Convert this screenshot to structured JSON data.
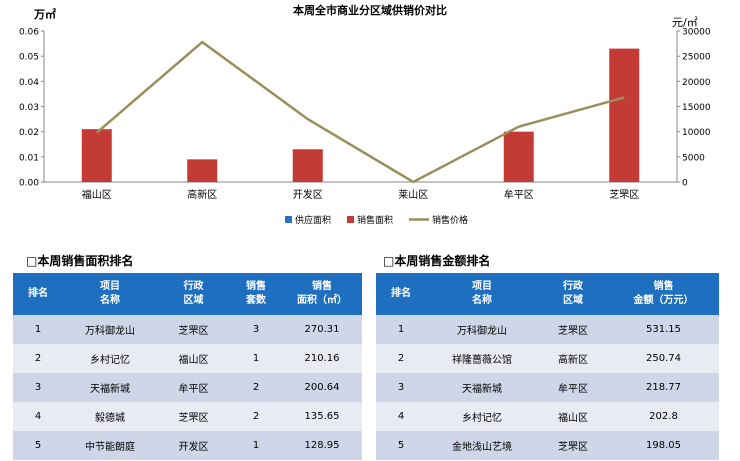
{
  "chart_data": {
    "type": "bar+line",
    "title": "本周全市商业分区域供销价对比",
    "categories": [
      "福山区",
      "高新区",
      "开发区",
      "莱山区",
      "牟平区",
      "芝罘区"
    ],
    "y_left_unit": "万㎡",
    "y_right_unit": "元/㎡",
    "y_left_ticks": [
      "0.00",
      "0.01",
      "0.02",
      "0.03",
      "0.04",
      "0.05",
      "0.06"
    ],
    "y_left_range": [
      0,
      0.06
    ],
    "y_right_ticks": [
      "0",
      "5000",
      "10000",
      "15000",
      "20000",
      "25000",
      "30000"
    ],
    "y_right_range": [
      0,
      30000
    ],
    "series": [
      {
        "name": "供应面积",
        "kind": "bar",
        "axis": "left",
        "color": "#2e6fc4",
        "values": [
          0,
          0,
          0,
          0,
          0,
          0
        ]
      },
      {
        "name": "销售面积",
        "kind": "bar",
        "axis": "left",
        "color": "#c43a35",
        "values": [
          0.021,
          0.009,
          0.013,
          0,
          0.02,
          0.053
        ]
      },
      {
        "name": "销售价格",
        "kind": "line",
        "axis": "right",
        "color": "#9a8f5a",
        "values": [
          9800,
          27800,
          12500,
          0,
          11000,
          16800
        ]
      }
    ],
    "legend_position": "bottom",
    "grid": false
  },
  "area_table": {
    "title": "本周销售面积排名",
    "headers": [
      "排名",
      "项目\n名称",
      "行政\n区域",
      "销售\n套数",
      "销售\n面积（㎡）"
    ],
    "rows": [
      [
        "1",
        "万科御龙山",
        "芝罘区",
        "3",
        "270.31"
      ],
      [
        "2",
        "乡村记忆",
        "福山区",
        "1",
        "210.16"
      ],
      [
        "3",
        "天福新城",
        "牟平区",
        "2",
        "200.64"
      ],
      [
        "4",
        "毅德城",
        "芝罘区",
        "2",
        "135.65"
      ],
      [
        "5",
        "中节能朗庭",
        "开发区",
        "1",
        "128.95"
      ]
    ]
  },
  "amount_table": {
    "title": "本周销售金额排名",
    "headers": [
      "排名",
      "项目\n名称",
      "行政\n区域",
      "销售\n金额（万元）"
    ],
    "rows": [
      [
        "1",
        "万科御龙山",
        "芝罘区",
        "531.15"
      ],
      [
        "2",
        "祥隆蔷薇公馆",
        "高新区",
        "250.74"
      ],
      [
        "3",
        "天福新城",
        "牟平区",
        "218.77"
      ],
      [
        "4",
        "乡村记忆",
        "福山区",
        "202.8"
      ],
      [
        "5",
        "金地浅山艺境",
        "芝罘区",
        "198.05"
      ]
    ]
  }
}
